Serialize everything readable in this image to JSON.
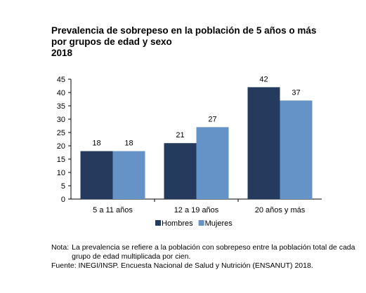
{
  "title_lines": [
    "Prevalencia de sobrepeso en la población de 5 años o más",
    "por grupos de edad y sexo",
    "2018"
  ],
  "chart_data": {
    "type": "bar",
    "title": "Prevalencia de sobrepeso en la población de 5 años o más por grupos de edad y sexo 2018",
    "categories": [
      "5 a 11 años",
      "12 a 19 años",
      "20 años y más"
    ],
    "series": [
      {
        "name": "Hombres",
        "values": [
          18,
          21,
          42
        ],
        "color": "#243b5e"
      },
      {
        "name": "Mujeres",
        "values": [
          18,
          27,
          37
        ],
        "color": "#6593c8"
      }
    ],
    "ylim": [
      0,
      45
    ],
    "yticks": [
      0,
      5,
      10,
      15,
      20,
      25,
      30,
      35,
      40,
      45
    ],
    "grid": false,
    "legend": "bottom",
    "data_labels": true
  },
  "note": {
    "label": "Nota:",
    "text": "La prevalencia se refiere a la población con sobrepeso entre la población total de cada grupo de edad multiplicada por cien."
  },
  "source": "Fuente: INEGI/INSP. Encuesta Nacional de Salud y Nutrición (ENSANUT) 2018."
}
